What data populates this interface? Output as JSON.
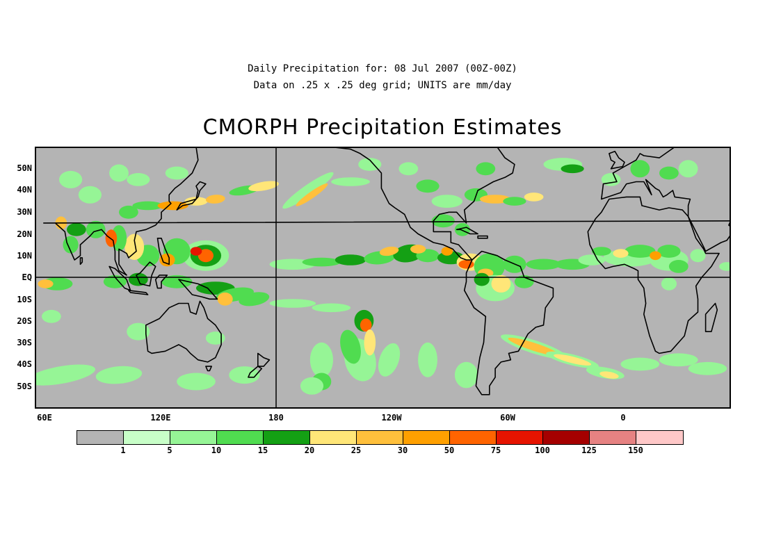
{
  "header": {
    "line1": "Daily Precipitation for: 08 Jul 2007 (00Z-00Z)",
    "line2": "Data on .25 x .25 deg grid; UNITS are mm/day",
    "title": "CMORPH Precipitation Estimates"
  },
  "map": {
    "lat_labels": [
      "50N",
      "40N",
      "30N",
      "20N",
      "10N",
      "EQ",
      "10S",
      "20S",
      "30S",
      "40S",
      "50S"
    ],
    "lon_labels": [
      "60E",
      "120E",
      "180",
      "120W",
      "60W",
      "0"
    ],
    "land_color": "#b4b4b4",
    "background_color": "#b4b4b4"
  },
  "legend": {
    "colors": [
      "#b4b4b4",
      "#c8ffc8",
      "#96f596",
      "#50dc50",
      "#14a014",
      "#ffe678",
      "#ffc03c",
      "#ffa000",
      "#ff6400",
      "#e61400",
      "#a50000",
      "#e68282",
      "#ffc8c8"
    ],
    "labels": [
      "1",
      "5",
      "10",
      "15",
      "20",
      "25",
      "30",
      "50",
      "75",
      "100",
      "125",
      "150"
    ]
  }
}
